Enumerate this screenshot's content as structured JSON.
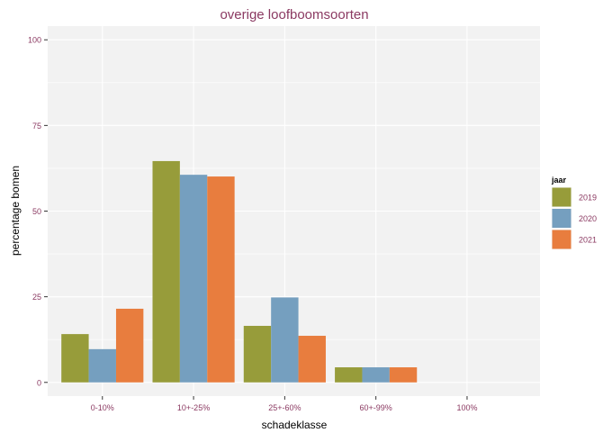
{
  "chart_data": {
    "type": "bar",
    "title": "overige loofboomsoorten",
    "xlabel": "schadeklasse",
    "ylabel": "percentage bomen",
    "categories": [
      "0-10%",
      "10+-25%",
      "25+-60%",
      "60+-99%",
      "100%"
    ],
    "yticks": [
      0,
      25,
      50,
      75,
      100
    ],
    "ylim": [
      -4,
      104
    ],
    "grid": true,
    "legend": {
      "title": "jaar",
      "position": "right"
    },
    "series": [
      {
        "name": "2019",
        "color": "#979c3a",
        "values": [
          14.1,
          64.6,
          16.5,
          4.4,
          0
        ]
      },
      {
        "name": "2020",
        "color": "#759fbf",
        "values": [
          9.7,
          60.6,
          24.8,
          4.4,
          0
        ]
      },
      {
        "name": "2021",
        "color": "#e87d3e",
        "values": [
          21.5,
          60.1,
          13.6,
          4.4,
          0
        ]
      }
    ],
    "colors": {
      "panel": "#f2f2f2",
      "grid": "#ffffff",
      "text": "#8b3a62",
      "axis_title": "#000000"
    }
  }
}
